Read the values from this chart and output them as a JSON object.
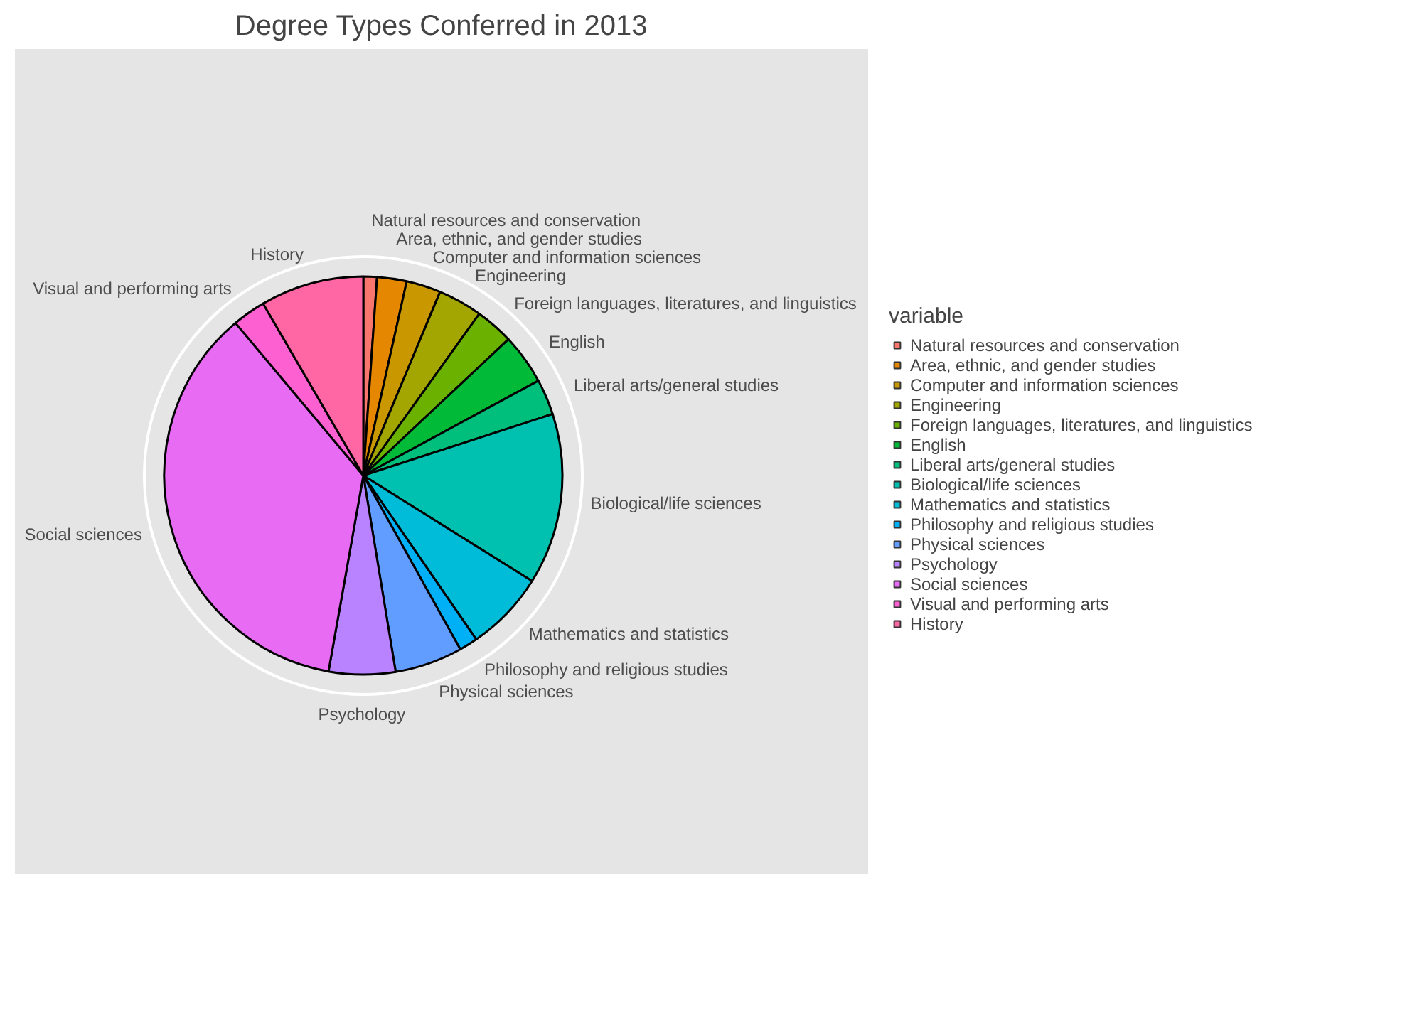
{
  "chart_data": {
    "type": "pie",
    "title": "Degree Types Conferred in 2013",
    "legend_title": "variable",
    "legend": "right",
    "grid": true,
    "categories": [
      "Natural resources and conservation",
      "Area, ethnic, and gender studies",
      "Computer and information sciences",
      "Engineering",
      "Foreign languages, literatures, and linguistics",
      "English",
      "Liberal arts/general studies",
      "Biological/life sciences",
      "Mathematics and statistics",
      "Philosophy and religious studies",
      "Physical sciences",
      "Psychology",
      "Social sciences",
      "Visual and performing arts",
      "History"
    ],
    "values": [
      1.1,
      2.4,
      2.8,
      3.6,
      3.1,
      4.1,
      2.9,
      13.9,
      6.5,
      1.5,
      5.5,
      5.4,
      36.1,
      2.7,
      8.4
    ],
    "colors": [
      "#f8766d",
      "#e58700",
      "#c99800",
      "#a3a500",
      "#6bb100",
      "#00ba38",
      "#00bf7d",
      "#00c0af",
      "#00bcd8",
      "#00b0f6",
      "#619cff",
      "#b983ff",
      "#e76bf3",
      "#fd61d1",
      "#ff67a4"
    ]
  }
}
